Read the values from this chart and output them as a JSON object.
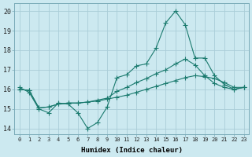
{
  "xlabel": "Humidex (Indice chaleur)",
  "bg_color": "#cce9f0",
  "grid_color": "#aacdd8",
  "line_color": "#1a7a6e",
  "xlim": [
    -0.5,
    23.5
  ],
  "ylim": [
    13.7,
    20.4
  ],
  "xticks": [
    0,
    1,
    2,
    3,
    4,
    5,
    6,
    7,
    8,
    9,
    10,
    11,
    12,
    13,
    14,
    15,
    16,
    17,
    18,
    19,
    20,
    21,
    22,
    23
  ],
  "yticks": [
    14,
    15,
    16,
    17,
    18,
    19,
    20
  ],
  "line1_x": [
    0,
    1,
    2,
    3,
    4,
    5,
    6,
    7,
    8,
    9,
    10,
    11,
    12,
    13,
    14,
    15,
    16,
    17,
    18,
    19,
    20,
    21,
    22,
    23
  ],
  "line1_y": [
    16.1,
    15.85,
    15.0,
    14.8,
    15.3,
    15.25,
    14.8,
    14.0,
    14.3,
    15.1,
    16.6,
    16.75,
    17.2,
    17.3,
    18.1,
    19.4,
    20.0,
    19.3,
    17.6,
    17.6,
    16.7,
    16.25,
    16.0,
    16.1
  ],
  "line2_x": [
    0,
    1,
    2,
    3,
    4,
    5,
    6,
    7,
    8,
    9,
    10,
    11,
    12,
    13,
    14,
    15,
    16,
    17,
    18,
    19,
    20,
    21,
    22,
    23
  ],
  "line2_y": [
    16.0,
    15.95,
    15.05,
    15.1,
    15.25,
    15.3,
    15.3,
    15.35,
    15.4,
    15.5,
    15.6,
    15.7,
    15.85,
    16.0,
    16.15,
    16.3,
    16.45,
    16.6,
    16.7,
    16.65,
    16.55,
    16.35,
    16.1,
    16.1
  ],
  "line3_x": [
    0,
    1,
    2,
    3,
    4,
    5,
    6,
    7,
    8,
    9,
    10,
    11,
    12,
    13,
    14,
    15,
    16,
    17,
    18,
    19,
    20,
    21,
    22,
    23
  ],
  "line3_y": [
    16.0,
    15.95,
    15.05,
    15.1,
    15.25,
    15.3,
    15.3,
    15.35,
    15.45,
    15.55,
    15.9,
    16.1,
    16.35,
    16.55,
    16.8,
    17.0,
    17.3,
    17.55,
    17.25,
    16.7,
    16.3,
    16.1,
    16.0,
    16.1
  ]
}
